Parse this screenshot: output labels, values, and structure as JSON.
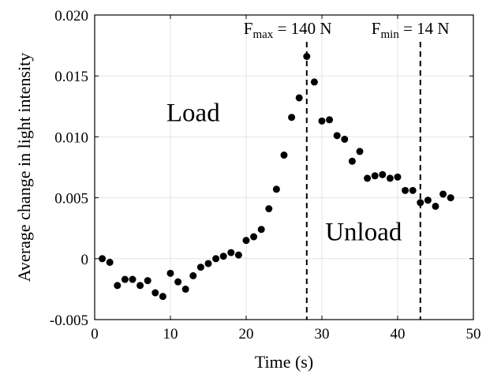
{
  "chart_data": {
    "type": "scatter",
    "xlabel": "Time (s)",
    "ylabel": "Average change in light intensity",
    "xlim": [
      0,
      50
    ],
    "ylim": [
      -0.005,
      0.02
    ],
    "x_ticks": [
      0,
      10,
      20,
      30,
      40,
      50
    ],
    "x_tick_labels": [
      "0",
      "10",
      "20",
      "30",
      "40",
      "50"
    ],
    "y_ticks": [
      -0.005,
      0,
      0.005,
      0.01,
      0.015,
      0.02
    ],
    "y_tick_labels": [
      "-0.005",
      "0",
      "0.005",
      "0.010",
      "0.015",
      "0.020"
    ],
    "grid": true,
    "marker_color": "#000000",
    "series": [
      {
        "x": [
          1,
          2,
          3,
          4,
          5,
          6,
          7,
          8,
          9,
          10,
          11,
          12,
          13,
          14,
          15,
          16,
          17,
          18,
          19,
          20,
          21,
          22,
          23,
          24,
          25,
          26,
          27,
          28,
          29,
          30,
          31,
          32,
          33,
          34,
          35,
          36,
          37,
          38,
          39,
          40,
          41,
          42,
          43,
          44,
          45,
          46,
          47
        ],
        "y": [
          0.0,
          -0.0003,
          -0.0022,
          -0.0017,
          -0.0017,
          -0.0022,
          -0.0018,
          -0.0028,
          -0.0031,
          -0.0012,
          -0.0019,
          -0.0025,
          -0.0014,
          -0.0007,
          -0.0004,
          0.0,
          0.0002,
          0.0005,
          0.0003,
          0.0015,
          0.0018,
          0.0024,
          0.0041,
          0.0057,
          0.0085,
          0.0116,
          0.0132,
          0.0166,
          0.0145,
          0.0113,
          0.0114,
          0.0101,
          0.0098,
          0.008,
          0.0088,
          0.0066,
          0.0068,
          0.0069,
          0.0066,
          0.0067,
          0.0056,
          0.0056,
          0.0046,
          0.0048,
          0.0043,
          0.0053,
          0.005
        ]
      }
    ],
    "vlines": [
      {
        "x": 28,
        "style": "dashed",
        "label_main": "F",
        "label_sub": "max",
        "label_rest": " = 140 N"
      },
      {
        "x": 43,
        "style": "dashed",
        "label_main": "F",
        "label_sub": "min",
        "label_rest": " = 14 N"
      }
    ],
    "annotations": [
      {
        "text": "Load",
        "x": 13,
        "y": 0.0113
      },
      {
        "text": "Unload",
        "x": 35.5,
        "y": 0.0015
      }
    ]
  }
}
